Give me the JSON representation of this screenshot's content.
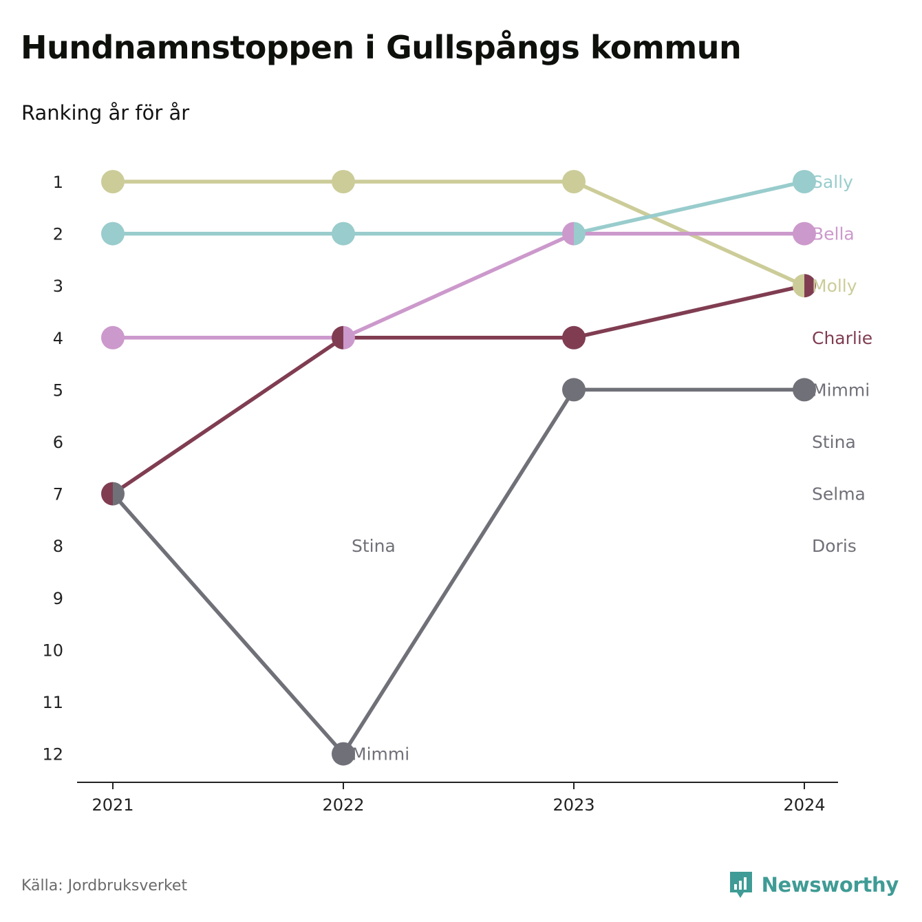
{
  "header": {
    "title": "Hundnamnstoppen i Gullspångs kommun",
    "subtitle": "Ranking år för år"
  },
  "footer": {
    "source": "Källa: Jordbruksverket",
    "brand": "Newsworthy",
    "brand_icon": "bar-chart-speech-bubble-icon",
    "brand_color": "#3f9b95"
  },
  "chart_data": {
    "type": "line",
    "subtype": "bump",
    "x": [
      "2021",
      "2022",
      "2023",
      "2024"
    ],
    "y_ticks": [
      1,
      2,
      3,
      4,
      5,
      6,
      7,
      8,
      9,
      10,
      11,
      12
    ],
    "ylim": [
      1,
      12
    ],
    "y_reversed": true,
    "grid": false,
    "legend": "end-labels-right",
    "series": [
      {
        "name": "Molly",
        "color": "#cccc99",
        "values": [
          1,
          1,
          1,
          3
        ]
      },
      {
        "name": "Sally",
        "color": "#99cccc",
        "values": [
          2,
          2,
          2,
          1
        ]
      },
      {
        "name": "Bella",
        "color": "#cc99cc",
        "values": [
          4,
          4,
          2,
          2
        ]
      },
      {
        "name": "Charlie",
        "color": "#803d52",
        "values": [
          7,
          4,
          4,
          3
        ]
      },
      {
        "name": "Mimmi",
        "color": "#707078",
        "values": [
          7,
          12,
          5,
          5
        ]
      },
      {
        "name": "Stina",
        "color": "#707078",
        "values": [
          null,
          8,
          null,
          6
        ]
      },
      {
        "name": "Selma",
        "color": "#707078",
        "values": [
          null,
          null,
          null,
          7
        ]
      },
      {
        "name": "Doris",
        "color": "#707078",
        "values": [
          null,
          null,
          null,
          8
        ]
      }
    ],
    "inline_labels": [
      {
        "text": "Stina",
        "x": "2022",
        "rank": 8,
        "color": "#707078"
      },
      {
        "text": "Mimmi",
        "x": "2022",
        "rank": 12,
        "color": "#707078"
      }
    ],
    "end_labels": [
      {
        "text": "Sally",
        "rank": 1,
        "color": "#99cccc"
      },
      {
        "text": "Bella",
        "rank": 2,
        "color": "#cc99cc"
      },
      {
        "text": "Molly",
        "rank": 3,
        "color": "#cccc99"
      },
      {
        "text": "Charlie",
        "rank": 4,
        "color": "#803d52"
      },
      {
        "text": "Mimmi",
        "rank": 5,
        "color": "#707078"
      },
      {
        "text": "Stina",
        "rank": 6,
        "color": "#707078"
      },
      {
        "text": "Selma",
        "rank": 7,
        "color": "#707078"
      },
      {
        "text": "Doris",
        "rank": 8,
        "color": "#707078"
      }
    ]
  }
}
